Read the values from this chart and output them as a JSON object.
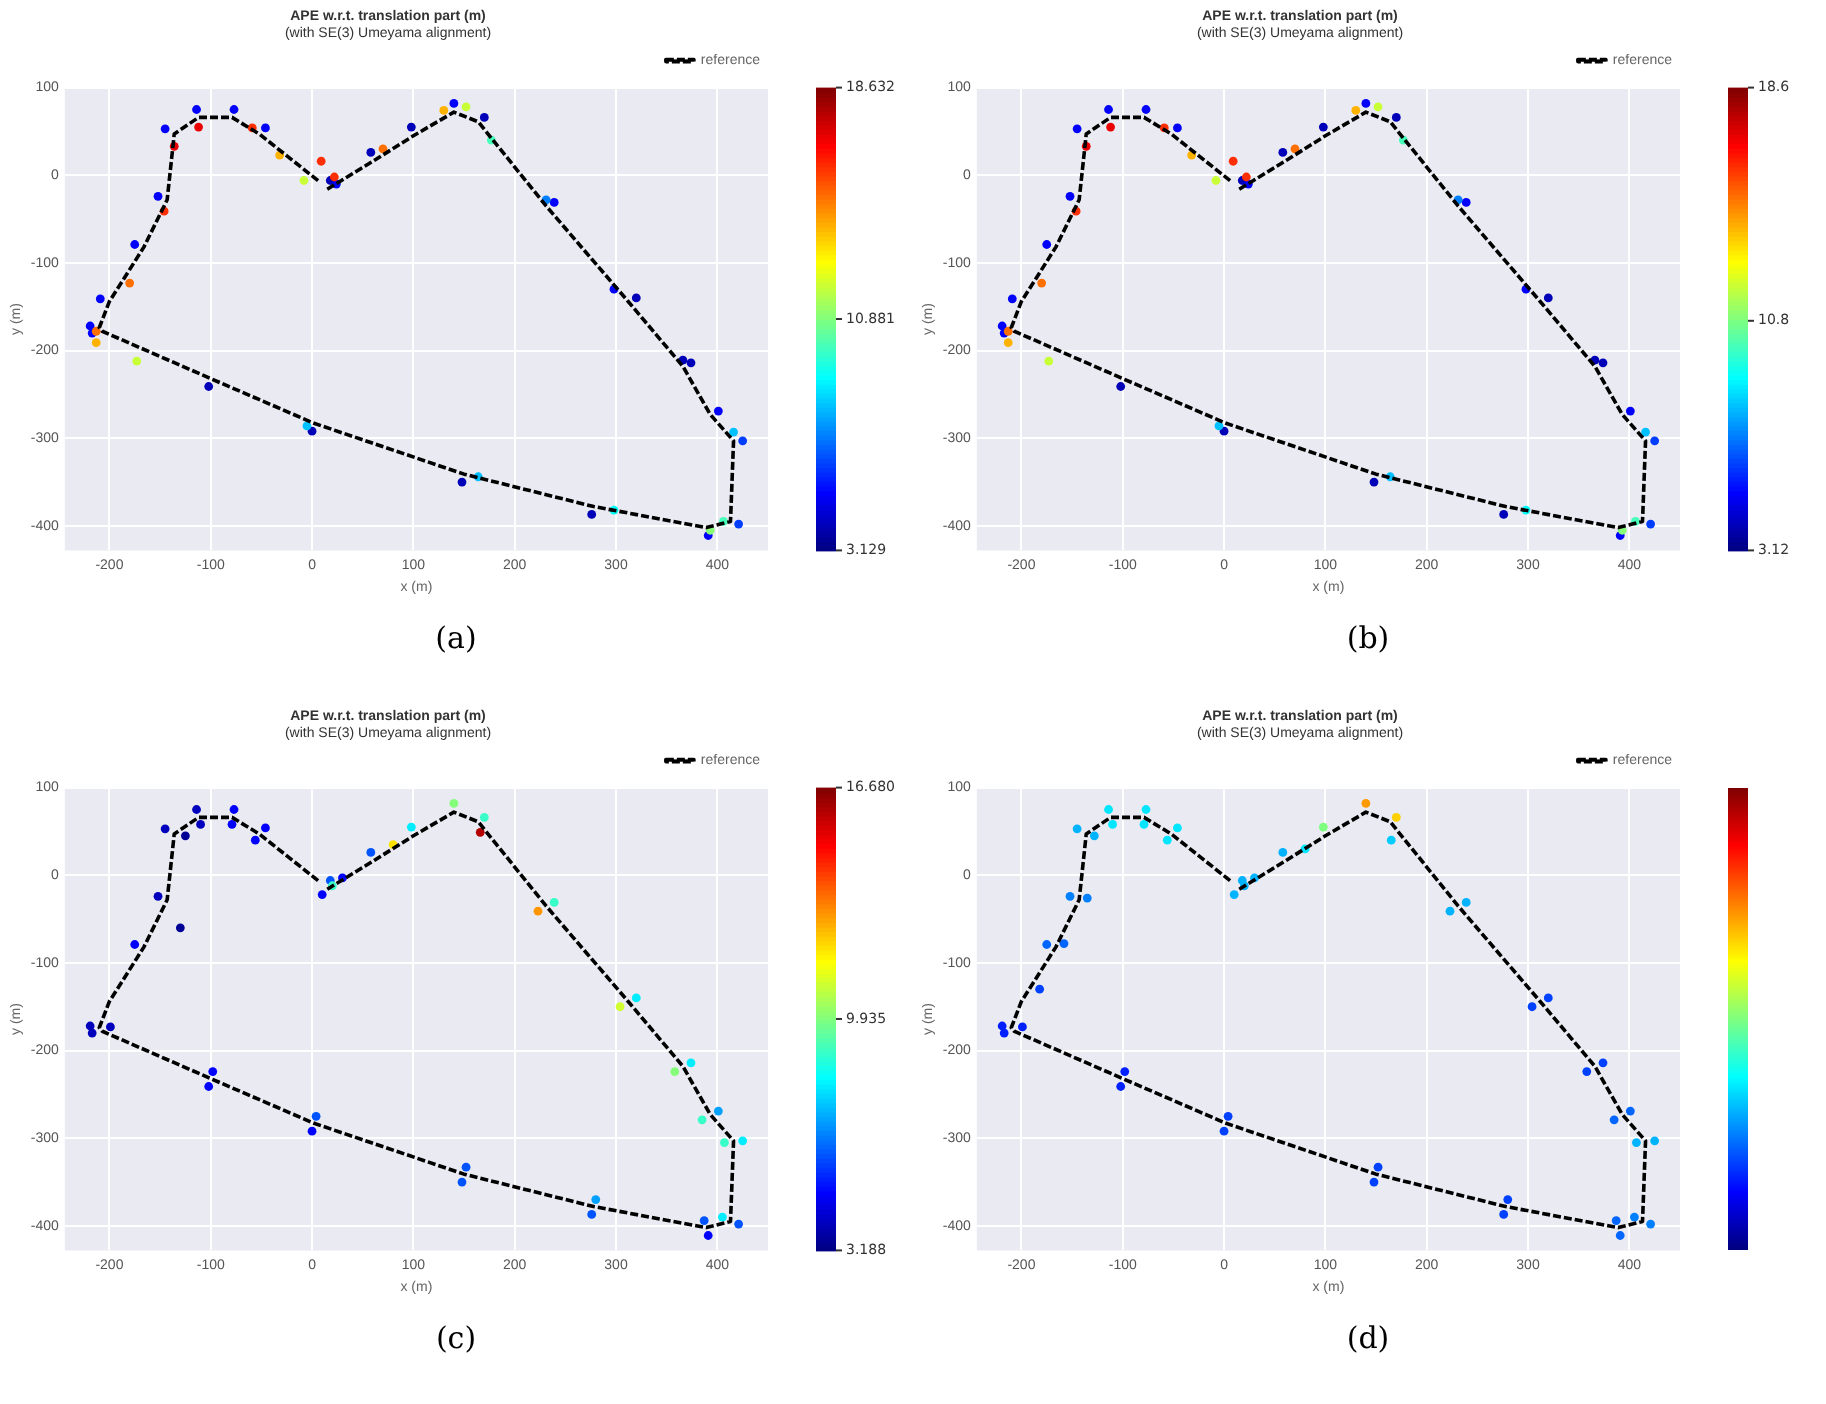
{
  "chart_data": [
    {
      "type": "scatter",
      "title": "APE w.r.t. translation part (m)",
      "subtitle": "(with SE(3) Umeyama alignment)",
      "xlabel": "x (m)",
      "ylabel": "y (m)",
      "xlim": [
        -244,
        450
      ],
      "ylim": [
        -428,
        100
      ],
      "xticks": [
        -200,
        -100,
        0,
        100,
        200,
        300,
        400
      ],
      "yticks": [
        -400,
        -300,
        -200,
        -100,
        0,
        100
      ],
      "grid": true,
      "legend": "top right",
      "clim": [
        3.129,
        18.632
      ],
      "cticks": [
        3.129,
        10.881,
        18.632
      ],
      "annotations": [
        "(a)"
      ],
      "series": [
        {
          "type": "line",
          "name": "reference",
          "color": "#000000",
          "line_style": "dashed",
          "marker": "none",
          "x": [
            15,
            60,
            100,
            140,
            164,
            231,
            312,
            366,
            393,
            416,
            413,
            389,
            278,
            150,
            2,
            -100,
            -207,
            -210,
            -200,
            -166,
            -143,
            -136,
            -112,
            -79,
            -52,
            8
          ],
          "values": [
            -16,
            16,
            45,
            72,
            61,
            -35,
            -144,
            -218,
            -273,
            -303,
            -395,
            -402,
            -378,
            -341,
            -283,
            -232,
            -178,
            -174,
            -144,
            -82,
            -28,
            47,
            66,
            66,
            47,
            -8
          ]
        },
        {
          "marker": "circle",
          "x": [
            18,
            58,
            98,
            140,
            170,
            239,
            320,
            374,
            401,
            425,
            421,
            391,
            276,
            148,
            0,
            -102,
            -217,
            -219,
            -209,
            -175,
            -152,
            -145,
            -114,
            -77,
            -46,
            24,
            9,
            22,
            70,
            130,
            152,
            177,
            231,
            298,
            366,
            416,
            406,
            393,
            298,
            164,
            -5,
            -173,
            -213,
            -213,
            -180,
            -146,
            -136,
            -112,
            -59,
            -32,
            -8
          ],
          "values": [
            -6,
            26,
            55,
            82,
            66,
            -31,
            -140,
            -214,
            -269,
            -303,
            -398,
            -411,
            -387,
            -350,
            -292,
            -241,
            -180,
            -172,
            -141,
            -79,
            -24,
            53,
            75,
            75,
            54,
            -10,
            16,
            -2,
            30,
            74,
            78,
            40,
            -28,
            -130,
            -211,
            -293,
            -395,
            -405,
            -382,
            -344,
            -286,
            -212,
            -191,
            -178,
            -123,
            -41,
            33,
            55,
            54,
            23,
            -6
          ],
          "colors": [
            "#0000b9",
            "#0000b9",
            "#0000b9",
            "#0000fb",
            "#0000b9",
            "#0000fb",
            "#0000b9",
            "#0000b9",
            "#0000fb",
            "#003dff",
            "#003dff",
            "#0000fb",
            "#0000b9",
            "#0000b9",
            "#0000b9",
            "#0000b9",
            "#0000fb",
            "#0000fb",
            "#0000fb",
            "#0000fb",
            "#0000fb",
            "#0000fb",
            "#0000fb",
            "#0000fb",
            "#0000fb",
            "#0000fb",
            "#ff2e00",
            "#ff2e00",
            "#ff7000",
            "#ffb300",
            "#c9ff36",
            "#45ffba",
            "#0080ff",
            "#0000fb",
            "#0000b9",
            "#00c1ff",
            "#45ffba",
            "#87ff78",
            "#00fffb",
            "#00c1ff",
            "#00c1ff",
            "#c9ff36",
            "#ffb300",
            "#ff7000",
            "#ff7000",
            "#ff2e00",
            "#ea0000",
            "#ea0000",
            "#ff2e00",
            "#ffb300",
            "#c9ff36"
          ]
        }
      ]
    },
    {
      "type": "scatter",
      "title": "APE w.r.t. translation part (m)",
      "subtitle": "(with SE(3) Umeyama alignment)",
      "xlabel": "x (m)",
      "ylabel": "y (m)",
      "xlim": [
        -244,
        450
      ],
      "ylim": [
        -428,
        100
      ],
      "xticks": [
        -200,
        -100,
        0,
        100,
        200,
        300,
        400
      ],
      "yticks": [
        -400,
        -300,
        -200,
        -100,
        0,
        100
      ],
      "grid": true,
      "legend": "top right",
      "clim": [
        3.12,
        18.6
      ],
      "cticks": [
        {
          "value": 3.12,
          "label": "3.12"
        },
        {
          "value": 10.8,
          "label": "10.8"
        },
        {
          "value": 18.6,
          "label": "18.6"
        }
      ],
      "annotations": [
        "(b)"
      ],
      "series": [
        {
          "type": "line",
          "name": "reference",
          "color": "#000000",
          "line_style": "dashed",
          "marker": "none",
          "x": [
            15,
            60,
            100,
            140,
            164,
            231,
            312,
            366,
            393,
            416,
            413,
            389,
            278,
            150,
            2,
            -100,
            -207,
            -210,
            -200,
            -166,
            -143,
            -136,
            -112,
            -79,
            -52,
            8
          ],
          "values": [
            -16,
            16,
            45,
            72,
            61,
            -35,
            -144,
            -218,
            -273,
            -303,
            -395,
            -402,
            -378,
            -341,
            -283,
            -232,
            -178,
            -174,
            -144,
            -82,
            -28,
            47,
            66,
            66,
            47,
            -8
          ]
        },
        {
          "marker": "circle",
          "x": [
            18,
            58,
            98,
            140,
            170,
            239,
            320,
            374,
            401,
            425,
            421,
            391,
            276,
            148,
            0,
            -102,
            -217,
            -219,
            -209,
            -175,
            -152,
            -145,
            -114,
            -77,
            -46,
            24,
            9,
            22,
            70,
            130,
            152,
            177,
            231,
            298,
            366,
            416,
            406,
            393,
            298,
            164,
            -5,
            -173,
            -213,
            -213,
            -180,
            -146,
            -136,
            -112,
            -59,
            -32,
            -8
          ],
          "values": [
            -6,
            26,
            55,
            82,
            66,
            -31,
            -140,
            -214,
            -269,
            -303,
            -398,
            -411,
            -387,
            -350,
            -292,
            -241,
            -180,
            -172,
            -141,
            -79,
            -24,
            53,
            75,
            75,
            54,
            -10,
            16,
            -2,
            30,
            74,
            78,
            40,
            -28,
            -130,
            -211,
            -293,
            -395,
            -405,
            -382,
            -344,
            -286,
            -212,
            -191,
            -178,
            -123,
            -41,
            33,
            55,
            54,
            23,
            -6
          ],
          "colors": [
            "#0000b9",
            "#0000b9",
            "#0000b9",
            "#0000fb",
            "#0000b9",
            "#0000fb",
            "#0000b9",
            "#0000b9",
            "#0000fb",
            "#003dff",
            "#003dff",
            "#0000fb",
            "#0000b9",
            "#0000b9",
            "#0000b9",
            "#0000b9",
            "#0000fb",
            "#0000fb",
            "#0000fb",
            "#0000fb",
            "#0000fb",
            "#0000fb",
            "#0000fb",
            "#0000fb",
            "#0000fb",
            "#0000fb",
            "#ff2e00",
            "#ff2e00",
            "#ff7000",
            "#ffb300",
            "#c9ff36",
            "#45ffba",
            "#0080ff",
            "#0000fb",
            "#0000b9",
            "#00c1ff",
            "#45ffba",
            "#87ff78",
            "#00fffb",
            "#00c1ff",
            "#00c1ff",
            "#c9ff36",
            "#ffb300",
            "#ff7000",
            "#ff7000",
            "#ff2e00",
            "#ea0000",
            "#ea0000",
            "#ff2e00",
            "#ffb300",
            "#c9ff36"
          ]
        }
      ]
    },
    {
      "type": "scatter",
      "title": "APE w.r.t. translation part (m)",
      "subtitle": "(with SE(3) Umeyama alignment)",
      "xlabel": "x (m)",
      "ylabel": "y (m)",
      "xlim": [
        -244,
        450
      ],
      "ylim": [
        -428,
        100
      ],
      "xticks": [
        -200,
        -100,
        0,
        100,
        200,
        300,
        400
      ],
      "yticks": [
        -400,
        -300,
        -200,
        -100,
        0,
        100
      ],
      "grid": true,
      "legend": "top right",
      "clim": [
        3.188,
        16.68
      ],
      "cticks": [
        3.188,
        9.935,
        {
          "value": 16.68,
          "label": "16.680"
        }
      ],
      "annotations": [
        "(c)"
      ],
      "series": [
        {
          "type": "line",
          "name": "reference",
          "color": "#000000",
          "line_style": "dashed",
          "marker": "none",
          "x": [
            15,
            60,
            100,
            140,
            164,
            231,
            312,
            366,
            393,
            416,
            413,
            389,
            278,
            150,
            2,
            -100,
            -207,
            -210,
            -200,
            -166,
            -143,
            -136,
            -112,
            -79,
            -52,
            8
          ],
          "values": [
            -16,
            16,
            45,
            72,
            61,
            -35,
            -144,
            -218,
            -273,
            -303,
            -395,
            -402,
            -378,
            -341,
            -283,
            -232,
            -178,
            -174,
            -144,
            -82,
            -28,
            47,
            66,
            66,
            47,
            -8
          ]
        },
        {
          "marker": "circle",
          "x": [
            18,
            58,
            98,
            140,
            170,
            239,
            320,
            374,
            401,
            425,
            421,
            391,
            276,
            148,
            0,
            -102,
            -217,
            -219,
            -175,
            -152,
            -145,
            -114,
            -77,
            -46,
            30,
            20,
            80,
            166,
            223,
            304,
            358,
            385,
            407,
            405,
            387,
            280,
            152,
            4,
            -98,
            -199,
            -130,
            -125,
            -110,
            -79,
            -56,
            10
          ],
          "values": [
            -6,
            26,
            55,
            82,
            66,
            -31,
            -140,
            -214,
            -269,
            -303,
            -398,
            -411,
            -387,
            -350,
            -292,
            -241,
            -180,
            -172,
            -79,
            -24,
            53,
            75,
            75,
            54,
            -3,
            -12,
            35,
            49,
            -41,
            -150,
            -224,
            -279,
            -305,
            -390,
            -394,
            -370,
            -333,
            -275,
            -224,
            -173,
            -60,
            45,
            58,
            58,
            40,
            -22
          ],
          "colors": [
            "#0054ff",
            "#0054ff",
            "#00edff",
            "#85ff7a",
            "#38ffc7",
            "#38ffc7",
            "#00edff",
            "#00edff",
            "#00a1ff",
            "#00edff",
            "#0054ff",
            "#0000ff",
            "#0054ff",
            "#0054ff",
            "#0000ff",
            "#0000ff",
            "#0000bd",
            "#0000bd",
            "#0000ff",
            "#0000bd",
            "#0000bd",
            "#0000bd",
            "#0000ff",
            "#0000ff",
            "#0000ff",
            "#38ffc7",
            "#ffe300",
            "#b30000",
            "#ff9600",
            "#d1ff2e",
            "#85ff7a",
            "#38ffc7",
            "#38ffc7",
            "#00edff",
            "#0054ff",
            "#00a1ff",
            "#0054ff",
            "#0054ff",
            "#0000ff",
            "#0000bd",
            "#000097",
            "#000097",
            "#0000bd",
            "#0000ff",
            "#0000ff",
            "#0000ff"
          ]
        }
      ]
    },
    {
      "type": "scatter",
      "title": "APE w.r.t. translation part (m)",
      "subtitle": "(with SE(3) Umeyama alignment)",
      "xlabel": "x (m)",
      "ylabel": "y (m)",
      "xlim": [
        -244,
        450
      ],
      "ylim": [
        -428,
        100
      ],
      "xticks": [
        -200,
        -100,
        0,
        100,
        200,
        300,
        400
      ],
      "yticks": [
        -400,
        -300,
        -200,
        -100,
        0,
        100
      ],
      "grid": true,
      "legend": "top right",
      "annotations": [
        "(d)"
      ],
      "series": [
        {
          "type": "line",
          "name": "reference",
          "color": "#000000",
          "line_style": "dashed",
          "marker": "none",
          "x": [
            15,
            60,
            100,
            140,
            164,
            231,
            312,
            366,
            393,
            416,
            413,
            389,
            278,
            150,
            2,
            -100,
            -207,
            -210,
            -200,
            -166,
            -143,
            -136,
            -112,
            -79,
            -52,
            8
          ],
          "values": [
            -16,
            16,
            45,
            72,
            61,
            -35,
            -144,
            -218,
            -273,
            -303,
            -395,
            -402,
            -378,
            -341,
            -283,
            -232,
            -178,
            -174,
            -144,
            -82,
            -28,
            47,
            66,
            66,
            47,
            -8
          ]
        },
        {
          "marker": "circle",
          "x": [
            18,
            58,
            98,
            140,
            170,
            239,
            320,
            374,
            401,
            425,
            421,
            391,
            276,
            148,
            0,
            -102,
            -217,
            -219,
            -175,
            -152,
            -145,
            -114,
            -77,
            -46,
            30,
            20,
            80,
            165,
            223,
            304,
            358,
            385,
            407,
            405,
            387,
            280,
            152,
            4,
            -98,
            -199,
            -182,
            -158,
            -135,
            -128,
            -110,
            -79,
            -56,
            10
          ],
          "values": [
            -6,
            26,
            55,
            82,
            66,
            -31,
            -140,
            -214,
            -269,
            -303,
            -398,
            -411,
            -387,
            -350,
            -292,
            -241,
            -180,
            -172,
            -79,
            -24,
            53,
            75,
            75,
            54,
            -3,
            -12,
            30,
            40,
            -41,
            -150,
            -224,
            -279,
            -305,
            -390,
            -394,
            -370,
            -333,
            -275,
            -224,
            -173,
            -130,
            -78,
            -26,
            45,
            58,
            58,
            40,
            -22
          ],
          "colors": [
            "#00b3ff",
            "#00b3ff",
            "#7fff7f",
            "#ff9900",
            "#ffd000",
            "#00b3ff",
            "#0040ff",
            "#0040ff",
            "#0066ff",
            "#00b3ff",
            "#0080ff",
            "#0066ff",
            "#0040ff",
            "#0040ff",
            "#0040ff",
            "#0020ff",
            "#0020ff",
            "#0020ff",
            "#0066ff",
            "#0080ff",
            "#00b3ff",
            "#00e6ff",
            "#00e6ff",
            "#00e6ff",
            "#00b3ff",
            "#00b3ff",
            "#00e6ff",
            "#00ccff",
            "#00b3ff",
            "#0040ff",
            "#0040ff",
            "#0066ff",
            "#00b3ff",
            "#0080ff",
            "#0066ff",
            "#0040ff",
            "#0040ff",
            "#0040ff",
            "#0020ff",
            "#0020ff",
            "#0040ff",
            "#0066ff",
            "#0080ff",
            "#00b3ff",
            "#00e6ff",
            "#00e6ff",
            "#00e6ff",
            "#00b3ff"
          ]
        }
      ]
    }
  ]
}
